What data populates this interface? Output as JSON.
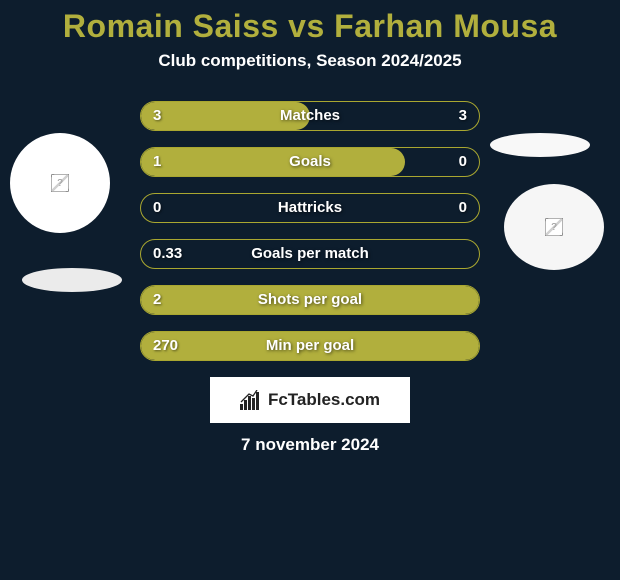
{
  "background_color": "#0d1d2d",
  "title": {
    "text": "Romain Saiss vs Farhan Mousa",
    "color": "#b1af3d",
    "fontsize": 32
  },
  "subtitle": {
    "text": "Club competitions, Season 2024/2025",
    "color": "#ffffff",
    "fontsize": 17
  },
  "left_player": {
    "avatar_bg": "#ffffff",
    "shadow_color": "#ebebeb"
  },
  "right_player": {
    "avatar_bg": "#f6f6f6",
    "shadow_color": "#f8f8f8"
  },
  "bars": {
    "track_border": "#a9a730",
    "fill_color": "#b1af3d",
    "text_color": "#ffffff",
    "rows": [
      {
        "label": "Matches",
        "left": "3",
        "right": "3",
        "fill_pct": 50,
        "show_right": true
      },
      {
        "label": "Goals",
        "left": "1",
        "right": "0",
        "fill_pct": 78,
        "show_right": true
      },
      {
        "label": "Hattricks",
        "left": "0",
        "right": "0",
        "fill_pct": 0,
        "show_right": true
      },
      {
        "label": "Goals per match",
        "left": "0.33",
        "right": "",
        "fill_pct": 0,
        "show_right": false
      },
      {
        "label": "Shots per goal",
        "left": "2",
        "right": "",
        "fill_pct": 100,
        "show_right": false
      },
      {
        "label": "Min per goal",
        "left": "270",
        "right": "",
        "fill_pct": 100,
        "show_right": false
      }
    ]
  },
  "branding": {
    "bg": "#ffffff",
    "text": "FcTables.com",
    "text_color": "#232323"
  },
  "date": {
    "text": "7 november 2024",
    "color": "#ffffff"
  }
}
